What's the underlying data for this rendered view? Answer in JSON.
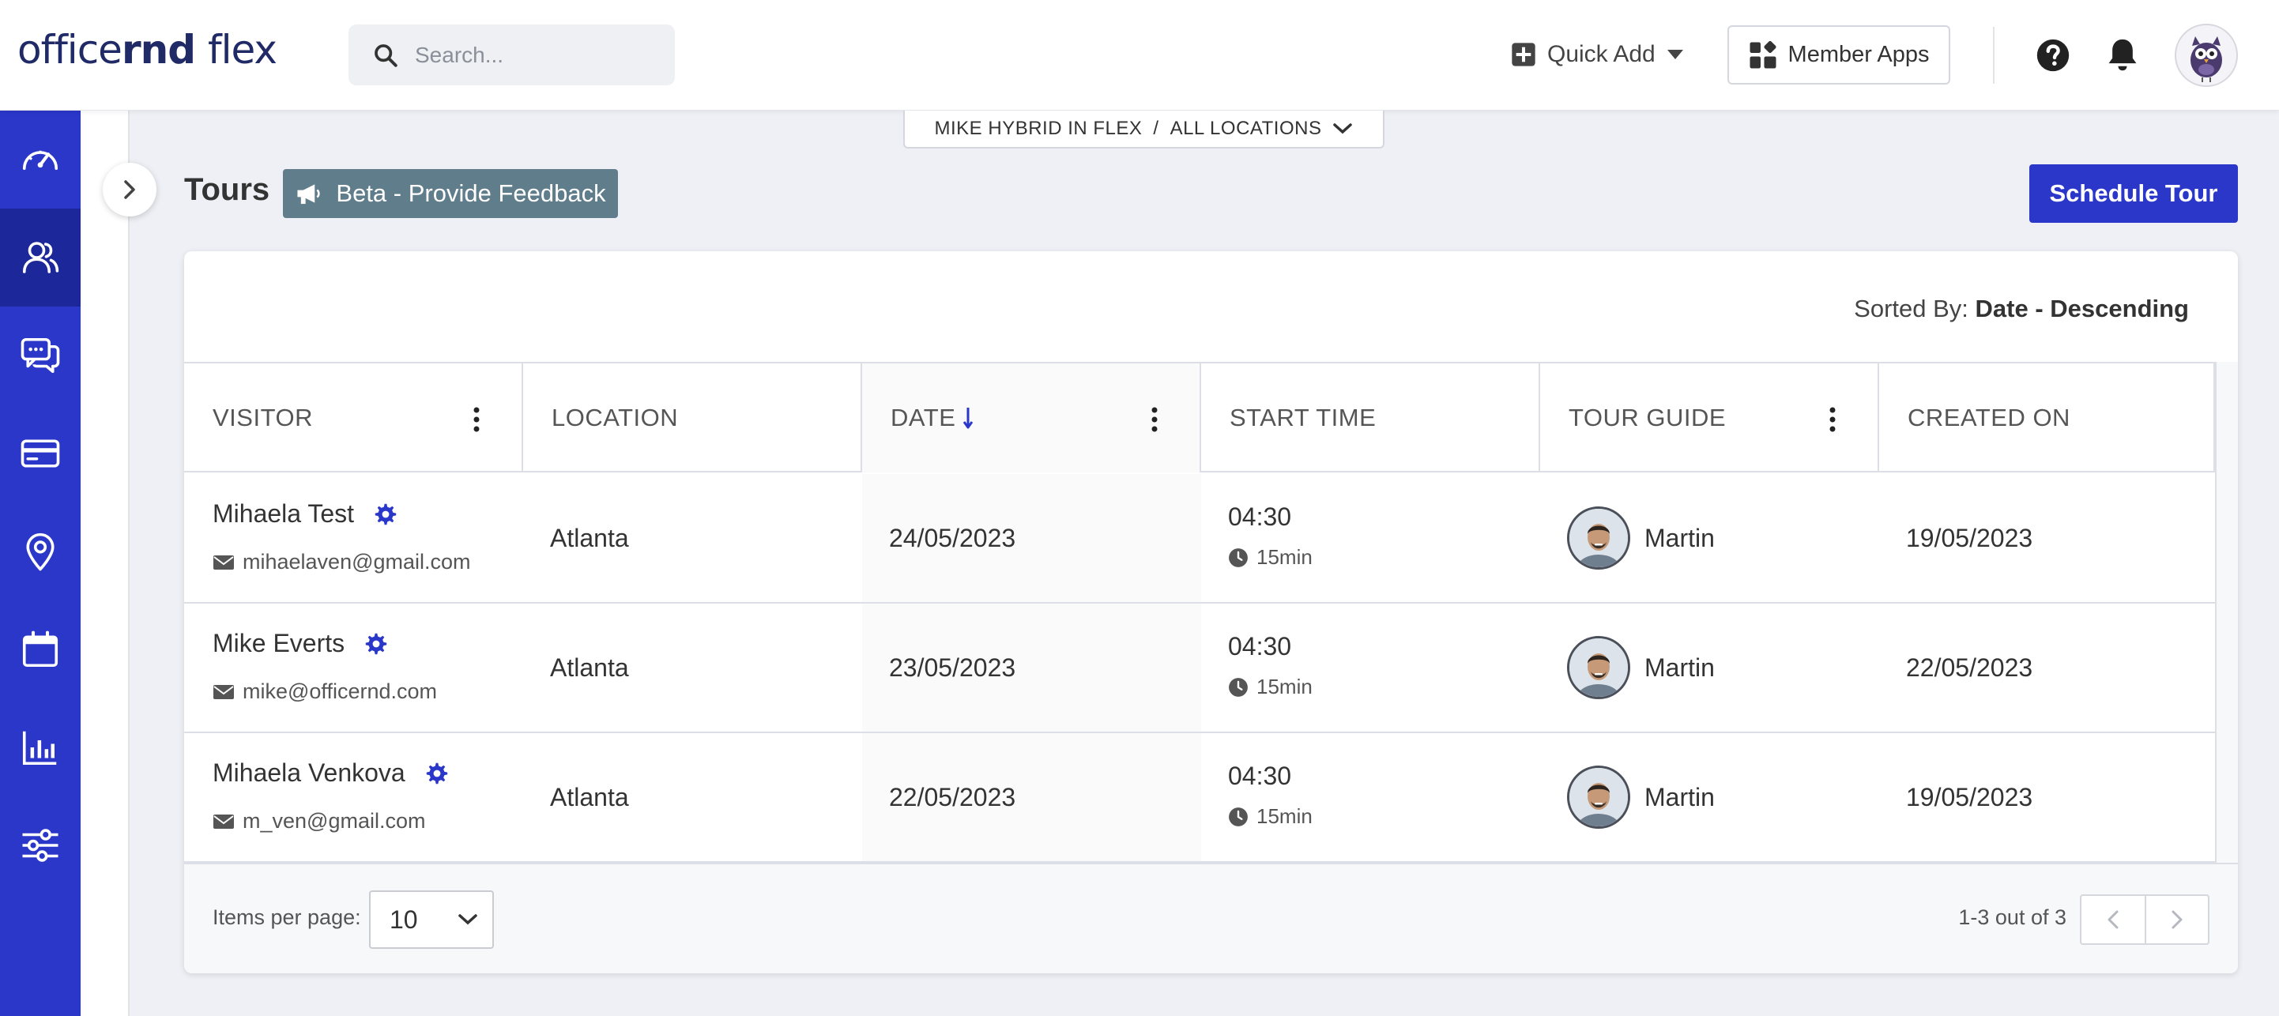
{
  "colors": {
    "brand": "#2a37c9",
    "sidebar_active": "#1c2799",
    "beta": "#607d8b",
    "logo": "#1f2a66"
  },
  "header": {
    "logo_light": "office",
    "logo_bold": "rnd",
    "logo_flex": "flex",
    "search_placeholder": "Search...",
    "quick_add_label": "Quick Add",
    "member_apps_label": "Member Apps"
  },
  "context": {
    "company": "MIKE HYBRID IN FLEX",
    "separator": "/",
    "location": "ALL LOCATIONS"
  },
  "sidebar": {
    "items": [
      {
        "icon": "dashboard-icon"
      },
      {
        "icon": "people-icon",
        "active": true
      },
      {
        "icon": "chat-icon"
      },
      {
        "icon": "billing-card-icon"
      },
      {
        "icon": "location-pin-icon"
      },
      {
        "icon": "calendar-icon"
      },
      {
        "icon": "reports-chart-icon"
      },
      {
        "icon": "settings-sliders-icon"
      }
    ]
  },
  "page": {
    "title": "Tours",
    "beta_label": "Beta - Provide Feedback",
    "schedule_label": "Schedule Tour",
    "sorted_prefix": "Sorted By:",
    "sorted_value": "Date - Descending"
  },
  "table": {
    "columns": [
      "VISITOR",
      "LOCATION",
      "DATE",
      "START TIME",
      "TOUR GUIDE",
      "CREATED ON"
    ],
    "rows": [
      {
        "name": "Mihaela Test",
        "email": "mihaelaven@gmail.com",
        "location": "Atlanta",
        "date": "24/05/2023",
        "time": "04:30",
        "duration": "15min",
        "guide": "Martin",
        "created": "19/05/2023"
      },
      {
        "name": "Mike Everts",
        "email": "mike@officernd.com",
        "location": "Atlanta",
        "date": "23/05/2023",
        "time": "04:30",
        "duration": "15min",
        "guide": "Martin",
        "created": "22/05/2023"
      },
      {
        "name": "Mihaela Venkova",
        "email": "m_ven@gmail.com",
        "location": "Atlanta",
        "date": "22/05/2023",
        "time": "04:30",
        "duration": "15min",
        "guide": "Martin",
        "created": "19/05/2023"
      }
    ]
  },
  "footer": {
    "items_per_page_label": "Items per page:",
    "items_per_page_value": "10",
    "range_text": "1-3 out of 3"
  }
}
